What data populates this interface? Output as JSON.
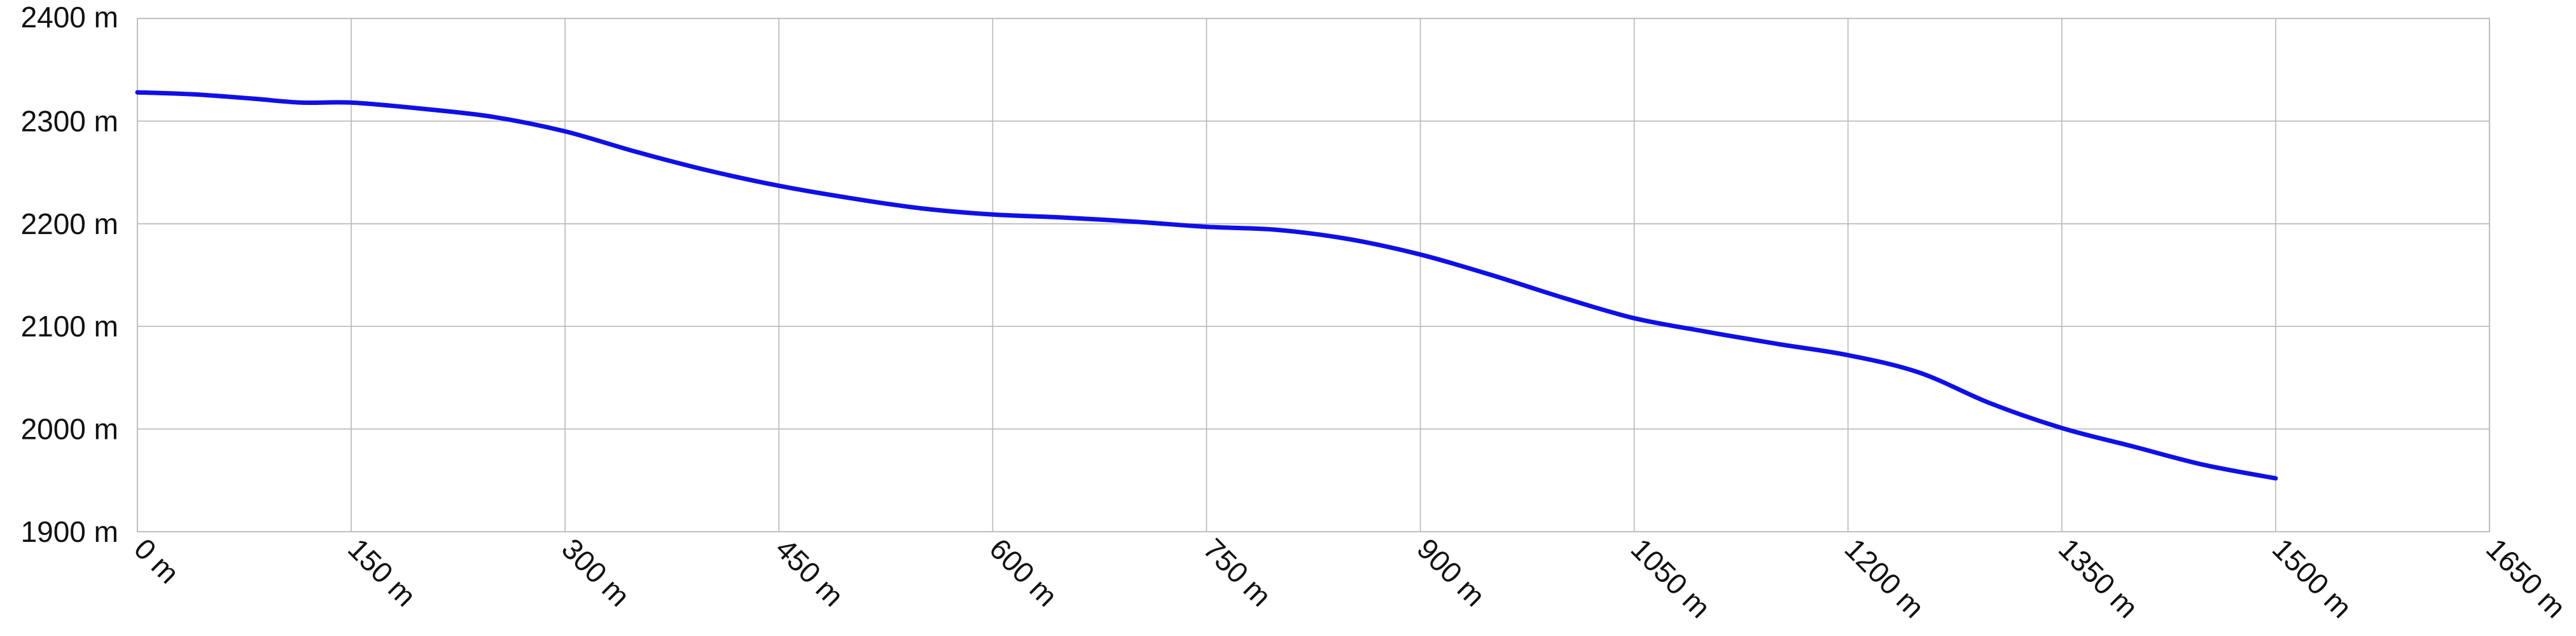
{
  "chart_data": {
    "type": "line",
    "title": "",
    "xlabel": "",
    "ylabel": "",
    "x_unit": "m",
    "y_unit": "m",
    "xlim": [
      0,
      1650
    ],
    "ylim": [
      1900,
      2400
    ],
    "x_ticks": [
      "0 m",
      "150 m",
      "300 m",
      "450 m",
      "600 m",
      "750 m",
      "900 m",
      "1050 m",
      "1200 m",
      "1350 m",
      "1500 m",
      "1650 m"
    ],
    "y_ticks": [
      "1900 m",
      "2000 m",
      "2100 m",
      "2200 m",
      "2300 m",
      "2400 m"
    ],
    "grid": true,
    "legend": "none",
    "series": [
      {
        "color": "#0f10e6",
        "x": [
          0,
          40,
          80,
          115,
          150,
          200,
          250,
          300,
          350,
          400,
          450,
          500,
          550,
          600,
          650,
          700,
          750,
          800,
          850,
          900,
          950,
          1000,
          1050,
          1100,
          1150,
          1200,
          1250,
          1300,
          1350,
          1400,
          1450,
          1500
        ],
        "y": [
          2328,
          2326,
          2322,
          2318,
          2318,
          2312,
          2304,
          2290,
          2270,
          2252,
          2237,
          2225,
          2215,
          2209,
          2206,
          2202,
          2197,
          2194,
          2185,
          2170,
          2150,
          2128,
          2108,
          2095,
          2083,
          2072,
          2055,
          2025,
          2001,
          1983,
          1965,
          1952
        ]
      }
    ]
  }
}
